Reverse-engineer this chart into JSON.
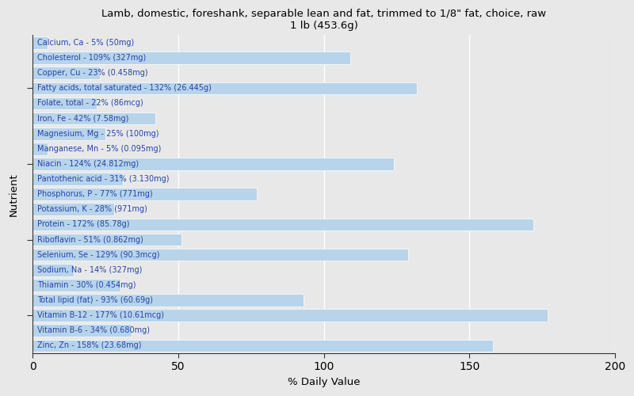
{
  "title": "Lamb, domestic, foreshank, separable lean and fat, trimmed to 1/8\" fat, choice, raw\n1 lb (453.6g)",
  "xlabel": "% Daily Value",
  "ylabel": "Nutrient",
  "xlim": [
    0,
    200
  ],
  "xticks": [
    0,
    50,
    100,
    150,
    200
  ],
  "bar_color": "#b8d4ea",
  "background_color": "#e8e8e8",
  "plot_bg": "#e8e8e8",
  "text_color": "#2244aa",
  "nutrients": [
    {
      "label": "Calcium, Ca - 5% (50mg)",
      "value": 5
    },
    {
      "label": "Cholesterol - 109% (327mg)",
      "value": 109
    },
    {
      "label": "Copper, Cu - 23% (0.458mg)",
      "value": 23
    },
    {
      "label": "Fatty acids, total saturated - 132% (26.445g)",
      "value": 132
    },
    {
      "label": "Folate, total - 22% (86mcg)",
      "value": 22
    },
    {
      "label": "Iron, Fe - 42% (7.58mg)",
      "value": 42
    },
    {
      "label": "Magnesium, Mg - 25% (100mg)",
      "value": 25
    },
    {
      "label": "Manganese, Mn - 5% (0.095mg)",
      "value": 5
    },
    {
      "label": "Niacin - 124% (24.812mg)",
      "value": 124
    },
    {
      "label": "Pantothenic acid - 31% (3.130mg)",
      "value": 31
    },
    {
      "label": "Phosphorus, P - 77% (771mg)",
      "value": 77
    },
    {
      "label": "Potassium, K - 28% (971mg)",
      "value": 28
    },
    {
      "label": "Protein - 172% (85.78g)",
      "value": 172
    },
    {
      "label": "Riboflavin - 51% (0.862mg)",
      "value": 51
    },
    {
      "label": "Selenium, Se - 129% (90.3mcg)",
      "value": 129
    },
    {
      "label": "Sodium, Na - 14% (327mg)",
      "value": 14
    },
    {
      "label": "Thiamin - 30% (0.454mg)",
      "value": 30
    },
    {
      "label": "Total lipid (fat) - 93% (60.69g)",
      "value": 93
    },
    {
      "label": "Vitamin B-12 - 177% (10.61mcg)",
      "value": 177
    },
    {
      "label": "Vitamin B-6 - 34% (0.680mg)",
      "value": 34
    },
    {
      "label": "Zinc, Zn - 158% (23.68mg)",
      "value": 158
    }
  ],
  "ytick_positions": [
    2,
    7,
    12,
    17
  ],
  "bar_height": 0.82,
  "label_fontsize": 7.0,
  "title_fontsize": 9.5,
  "xlabel_fontsize": 9.5
}
